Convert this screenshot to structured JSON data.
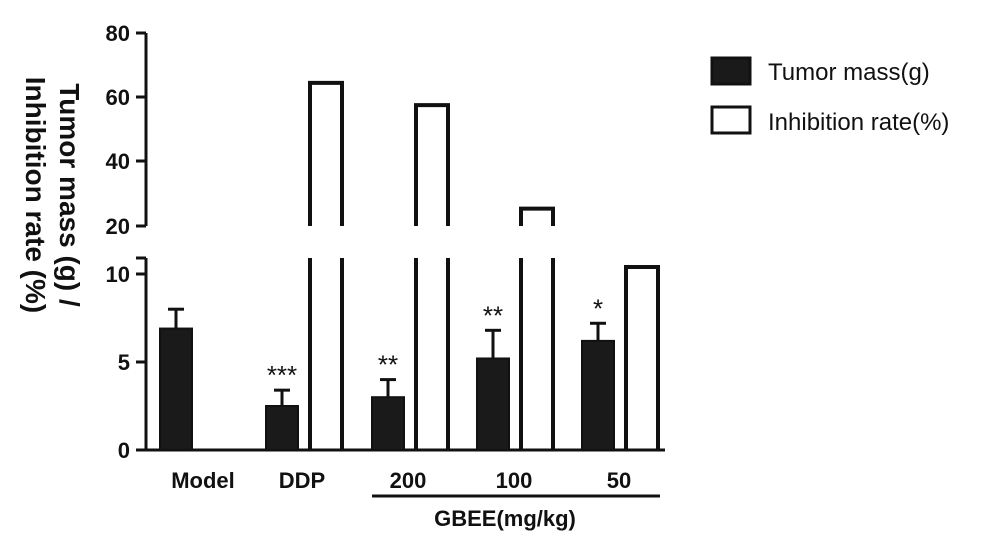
{
  "chart_data": {
    "type": "bar",
    "ylabel_line1": "Tumor mass (g) /",
    "ylabel_line2": "Inhibition rate (%)",
    "xlabel": "GBEE(mg/kg)",
    "categories": [
      "Model",
      "DDP",
      "200",
      "100",
      "50"
    ],
    "series": [
      {
        "name": "Tumor mass(g)",
        "color": "#1a1a1a",
        "values": [
          6.9,
          2.5,
          3.0,
          5.2,
          6.2
        ],
        "errors": [
          1.1,
          0.9,
          1.0,
          1.6,
          1.0
        ]
      },
      {
        "name": "Inhibition rate(%)",
        "color": "#ffffff",
        "values": [
          null,
          64.5,
          57.6,
          25.4,
          10.4
        ]
      }
    ],
    "significance": [
      "",
      "***",
      "**",
      "**",
      "*"
    ],
    "y_axis_lower": {
      "range": [
        0,
        11
      ],
      "ticks": [
        "0",
        "5",
        "10"
      ]
    },
    "y_axis_upper": {
      "range": [
        20,
        80
      ],
      "ticks": [
        "20",
        "40",
        "60",
        "80"
      ]
    },
    "axis_break": true,
    "legend_position": "top-right"
  }
}
